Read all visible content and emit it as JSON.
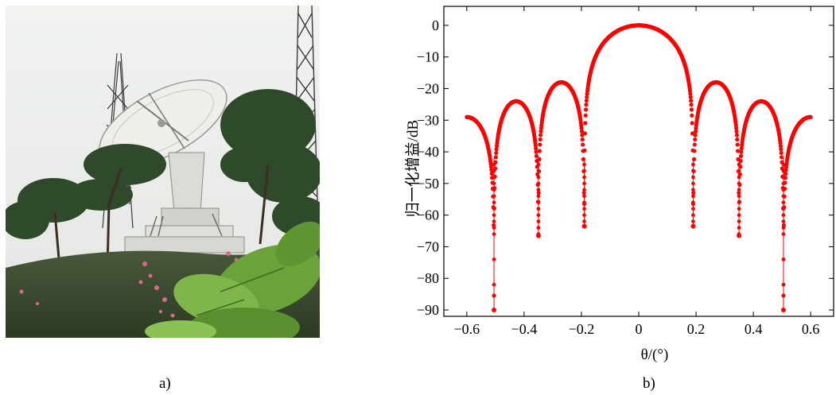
{
  "panels": {
    "left_label": "a)",
    "right_label": "b)"
  },
  "photo": {
    "subject": "radio-telescope-dish-on-hill",
    "colors": {
      "sky": "#e8ebe7",
      "dish": "#eeeeea",
      "foliage": "#2f4a2a",
      "leaves": "#6aa33a",
      "flowers": "#d66a8a"
    }
  },
  "chart_data": {
    "type": "scatter",
    "title": "",
    "xlabel": "θ/(°)",
    "ylabel": "归一化增益/dB",
    "xlim": [
      -0.68,
      0.68
    ],
    "ylim": [
      -92,
      6
    ],
    "xticks": [
      -0.6,
      -0.4,
      -0.2,
      0,
      0.2,
      0.4,
      0.6
    ],
    "xtick_labels": [
      "−0.6",
      "−0.4",
      "−0.2",
      "0",
      "0.2",
      "0.4",
      "0.6"
    ],
    "yticks": [
      0,
      -10,
      -20,
      -30,
      -40,
      -50,
      -60,
      -70,
      -80,
      -90
    ],
    "ytick_labels": [
      "0",
      "−10",
      "−20",
      "−30",
      "−40",
      "−50",
      "−60",
      "−70",
      "−80",
      "−90"
    ],
    "grid": false,
    "legend": "none",
    "marker_color": "#ff0000",
    "series": [
      {
        "x_range": [
          -0.6,
          0.6
        ],
        "main_lobe_peak": {
          "x": 0,
          "y": 0
        },
        "first_sidelobes": [
          {
            "x": -0.27,
            "y": -18
          },
          {
            "x": 0.27,
            "y": -18
          }
        ],
        "second_sidelobes": [
          {
            "x": -0.43,
            "y": -24
          },
          {
            "x": 0.43,
            "y": -24
          }
        ],
        "edge_values": [
          {
            "x": -0.6,
            "y": -29
          },
          {
            "x": 0.6,
            "y": -29
          }
        ],
        "nulls": [
          {
            "x": -0.505,
            "y": -90
          },
          {
            "x": -0.35,
            "y": -66.5
          },
          {
            "x": -0.19,
            "y": -63.5
          },
          {
            "x": 0.19,
            "y": -63.5
          },
          {
            "x": 0.35,
            "y": -66.5
          },
          {
            "x": 0.505,
            "y": -90
          }
        ]
      }
    ]
  }
}
